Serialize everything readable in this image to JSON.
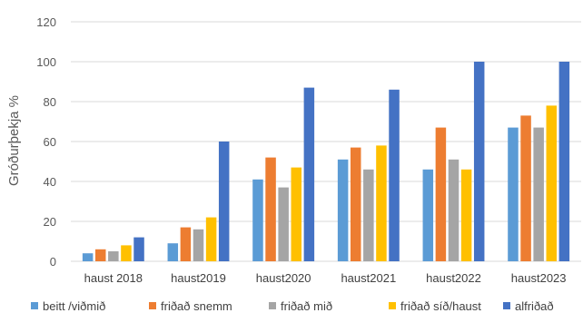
{
  "chart_data": {
    "type": "bar",
    "title": "",
    "xlabel": "",
    "ylabel": "Gróðurþekja %",
    "ylim": [
      0,
      120
    ],
    "yticks": [
      0,
      20,
      40,
      60,
      80,
      100,
      120
    ],
    "grid": true,
    "legend_position": "bottom",
    "categories": [
      "haust 2018",
      "haust2019",
      "haust2020",
      "haust2021",
      "haust2022",
      "haust2023"
    ],
    "series": [
      {
        "name": "beitt /viðmið",
        "color": "#5b9bd5",
        "values": [
          4,
          9,
          41,
          51,
          46,
          67
        ]
      },
      {
        "name": "friðað snemm",
        "color": "#ed7d31",
        "values": [
          6,
          17,
          52,
          57,
          67,
          73
        ]
      },
      {
        "name": "friðað mið",
        "color": "#a5a5a5",
        "values": [
          5,
          16,
          37,
          46,
          51,
          67
        ]
      },
      {
        "name": "friðað síð/haust",
        "color": "#ffc000",
        "values": [
          8,
          22,
          47,
          58,
          46,
          78
        ]
      },
      {
        "name": "alfriðað",
        "color": "#4472c4",
        "values": [
          12,
          60,
          87,
          86,
          100,
          100
        ]
      }
    ]
  }
}
